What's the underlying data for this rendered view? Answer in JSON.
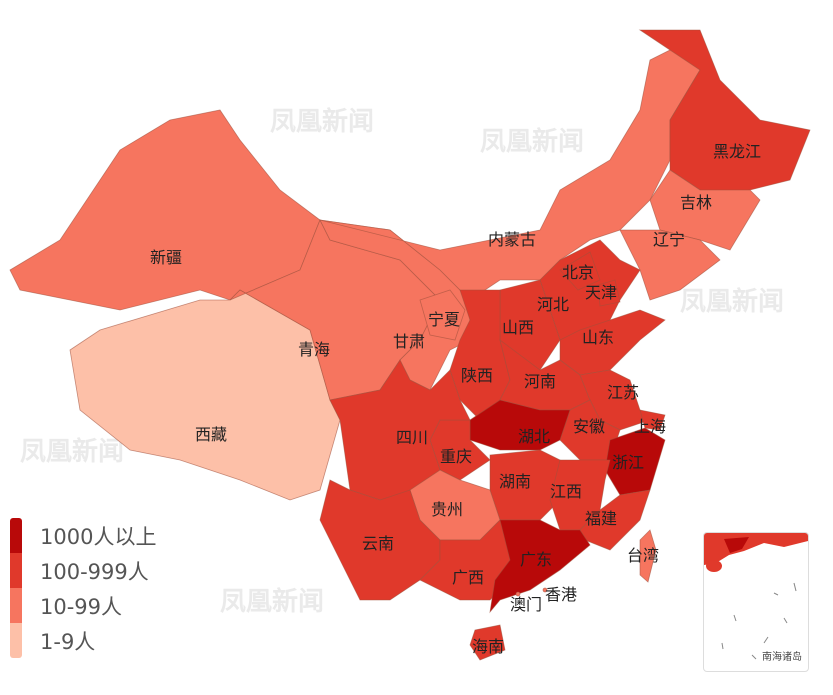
{
  "watermark": "凤凰新闻",
  "colors": {
    "c1000": "#b80909",
    "c100": "#e0392b",
    "c10": "#f6755f",
    "c1": "#fdc0a8"
  },
  "legend": [
    {
      "label": "1000人以上",
      "color": "#b80909"
    },
    {
      "label": "100-999人",
      "color": "#e0392b"
    },
    {
      "label": "10-99人",
      "color": "#f6755f"
    },
    {
      "label": "1-9人",
      "color": "#fdc0a8"
    }
  ],
  "provinces": {
    "xinjiang": {
      "name": "新疆",
      "level": "10-99人"
    },
    "xizang": {
      "name": "西藏",
      "level": "1-9人"
    },
    "qinghai": {
      "name": "青海",
      "level": "10-99人"
    },
    "gansu": {
      "name": "甘肃",
      "level": "10-99人"
    },
    "neimenggu": {
      "name": "内蒙古",
      "level": "10-99人"
    },
    "heilongjiang": {
      "name": "黑龙江",
      "level": "100-999人"
    },
    "jilin": {
      "name": "吉林",
      "level": "10-99人"
    },
    "liaoning": {
      "name": "辽宁",
      "level": "10-99人"
    },
    "beijing": {
      "name": "北京",
      "level": "100-999人"
    },
    "tianjin": {
      "name": "天津",
      "level": "100-999人"
    },
    "hebei": {
      "name": "河北",
      "level": "100-999人"
    },
    "shanxi": {
      "name": "山西",
      "level": "100-999人"
    },
    "ningxia": {
      "name": "宁夏",
      "level": "10-99人"
    },
    "shaanxi": {
      "name": "陕西",
      "level": "100-999人"
    },
    "shandong": {
      "name": "山东",
      "level": "100-999人"
    },
    "henan": {
      "name": "河南",
      "level": "100-999人"
    },
    "jiangsu": {
      "name": "江苏",
      "level": "100-999人"
    },
    "shanghai": {
      "name": "上海",
      "level": "100-999人"
    },
    "anhui": {
      "name": "安徽",
      "level": "100-999人"
    },
    "zhejiang": {
      "name": "浙江",
      "level": "1000人以上"
    },
    "hubei": {
      "name": "湖北",
      "level": "1000人以上"
    },
    "chongqing": {
      "name": "重庆",
      "level": "100-999人"
    },
    "sichuan": {
      "name": "四川",
      "level": "100-999人"
    },
    "hunan": {
      "name": "湖南",
      "level": "100-999人"
    },
    "jiangxi": {
      "name": "江西",
      "level": "100-999人"
    },
    "fujian": {
      "name": "福建",
      "level": "100-999人"
    },
    "guizhou": {
      "name": "贵州",
      "level": "10-99人"
    },
    "yunnan": {
      "name": "云南",
      "level": "100-999人"
    },
    "guangxi": {
      "name": "广西",
      "level": "100-999人"
    },
    "guangdong": {
      "name": "广东",
      "level": "1000人以上"
    },
    "hainan": {
      "name": "海南",
      "level": "100-999人"
    },
    "taiwan": {
      "name": "台湾",
      "level": "10-99人"
    },
    "hongkong": {
      "name": "香港",
      "level": "10-99人"
    },
    "macau": {
      "name": "澳门",
      "level": "10-99人"
    }
  },
  "inset": {
    "title": "南海诸岛"
  }
}
